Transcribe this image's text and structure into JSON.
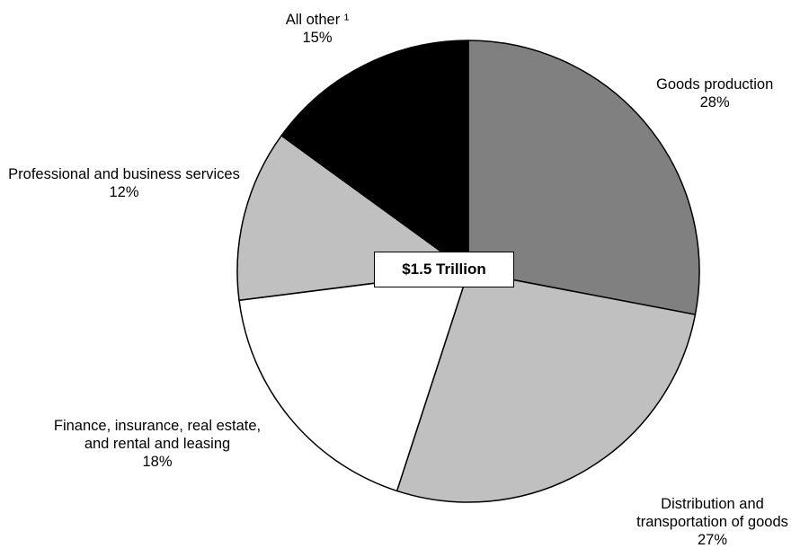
{
  "chart_data": {
    "type": "pie",
    "total_label": "$1.5 Trillion",
    "start": "top, clockwise",
    "slices": [
      {
        "label": "Goods production",
        "value": 28,
        "value_label": "28%",
        "color": "#808080"
      },
      {
        "label": "Distribution and transportation of goods",
        "value": 27,
        "value_label": "27%",
        "color": "#c0c0c0"
      },
      {
        "label": "Finance, insurance, real estate, and rental and leasing",
        "value": 18,
        "value_label": "18%",
        "color": "#ffffff"
      },
      {
        "label": "Professional and business services",
        "value": 12,
        "value_label": "12%",
        "color": "#c0c0c0"
      },
      {
        "label": "All other ¹",
        "value": 15,
        "value_label": "15%",
        "color": "#000000"
      }
    ]
  }
}
